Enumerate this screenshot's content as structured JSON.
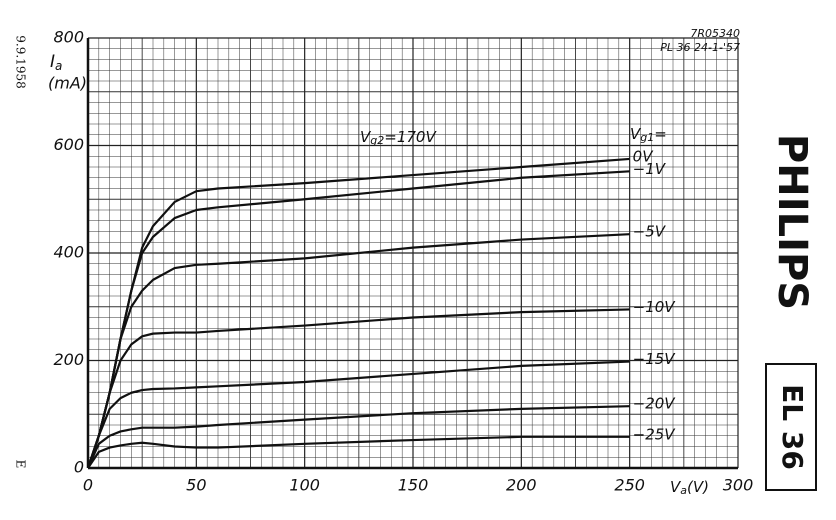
{
  "chart_data": {
    "type": "line",
    "x": [
      0,
      5,
      10,
      15,
      20,
      25,
      30,
      40,
      50,
      60,
      100,
      150,
      200,
      250
    ],
    "series": [
      {
        "name": "0V",
        "color": "#111111",
        "values": [
          0,
          60,
          140,
          240,
          330,
          410,
          450,
          495,
          515,
          520,
          530,
          545,
          560,
          575
        ]
      },
      {
        "name": "−1V",
        "color": "#111111",
        "values": [
          0,
          60,
          140,
          240,
          330,
          400,
          430,
          465,
          480,
          485,
          500,
          520,
          540,
          552
        ]
      },
      {
        "name": "−5V",
        "color": "#111111",
        "values": [
          0,
          60,
          140,
          240,
          300,
          330,
          350,
          372,
          378,
          380,
          390,
          410,
          425,
          435
        ]
      },
      {
        "name": "−10V",
        "color": "#111111",
        "values": [
          0,
          60,
          140,
          200,
          230,
          245,
          250,
          252,
          252,
          255,
          265,
          280,
          290,
          295
        ]
      },
      {
        "name": "−15V",
        "color": "#111111",
        "values": [
          0,
          60,
          110,
          130,
          140,
          145,
          147,
          148,
          150,
          152,
          160,
          175,
          190,
          198
        ]
      },
      {
        "name": "−20V",
        "color": "#111111",
        "values": [
          0,
          45,
          60,
          68,
          72,
          75,
          75,
          75,
          77,
          80,
          90,
          102,
          110,
          115
        ]
      },
      {
        "name": "−25V",
        "color": "#111111",
        "values": [
          0,
          30,
          38,
          42,
          45,
          47,
          45,
          40,
          38,
          38,
          45,
          52,
          58,
          58
        ]
      }
    ],
    "xlim": [
      0,
      300
    ],
    "xticks": [
      0,
      50,
      100,
      150,
      200,
      250,
      300
    ],
    "ylim": [
      0,
      800
    ],
    "yticks": [
      0,
      200,
      400,
      600,
      800
    ],
    "grid": true,
    "ylabel": [
      "I",
      "a"
    ],
    "yunit": "(mA)",
    "xlabel": [
      "V",
      "a",
      "(V)"
    ],
    "vg2_label": [
      "V",
      "g2",
      "=170V"
    ],
    "vg1_label": [
      "V",
      "g1",
      "="
    ],
    "code": "7R05340",
    "sheet": "PL 36  24-1-'57",
    "date": "9.9.1958",
    "mark": "E",
    "brand": "PHILIPS",
    "tube": "EL 36"
  }
}
